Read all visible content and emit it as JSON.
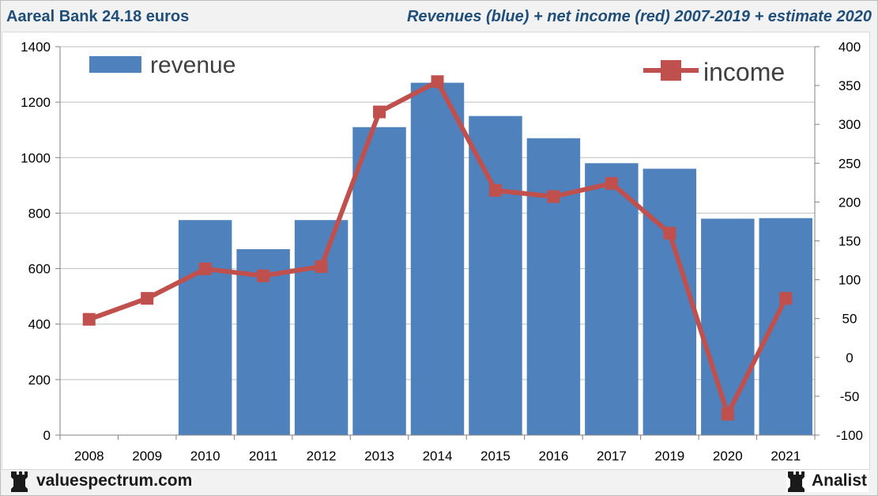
{
  "header": {
    "left_title": "Aareal Bank 24.18 euros",
    "right_title": "Revenues (blue) + net income (red) 2007-2019 + estimate 2020"
  },
  "footer": {
    "left_brand": "valuespectrum.com",
    "right_brand": "Analist"
  },
  "colors": {
    "revenue": "#4f81bd",
    "income": "#c0504d",
    "grid": "#bfbfbf",
    "title": "#1f4e79"
  },
  "chart_data": {
    "type": "bar",
    "title": "Revenues (blue) + net income (red) 2007-2019 + estimate 2020",
    "categories": [
      "2008",
      "2009",
      "2010",
      "2011",
      "2012",
      "2013",
      "2014",
      "2015",
      "2016",
      "2017",
      "2019",
      "2020",
      "2021"
    ],
    "series": [
      {
        "name": "revenue",
        "type": "bar",
        "axis": "left",
        "values": [
          null,
          null,
          775,
          670,
          775,
          1110,
          1270,
          1150,
          1070,
          980,
          960,
          780,
          782
        ]
      },
      {
        "name": "income",
        "type": "line",
        "axis": "right",
        "values": [
          49,
          76,
          114,
          105,
          117,
          316,
          355,
          215,
          207,
          224,
          160,
          -73,
          76
        ]
      }
    ],
    "y_left": {
      "min": 0,
      "max": 1400,
      "ticks": [
        "0",
        "200",
        "400",
        "600",
        "800",
        "1000",
        "1200",
        "1400"
      ]
    },
    "y_right": {
      "min": -100,
      "max": 400,
      "ticks": [
        "-100",
        "-50",
        "0",
        "50",
        "100",
        "150",
        "200",
        "250",
        "300",
        "350",
        "400"
      ]
    },
    "legend": {
      "revenue_label": "revenue",
      "income_label": "income"
    },
    "grid": true
  }
}
